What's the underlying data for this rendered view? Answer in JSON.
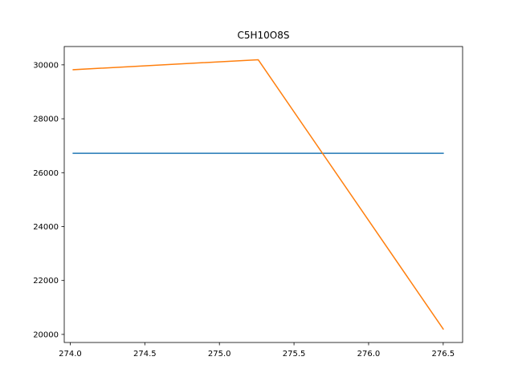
{
  "chart_data": {
    "type": "line",
    "title": "C5H10O8S",
    "xlabel": "",
    "ylabel": "",
    "xlim": [
      273.96,
      276.63
    ],
    "ylim": [
      19700,
      30680
    ],
    "grid": false,
    "x_ticks": [
      "274.0",
      "274.5",
      "275.0",
      "275.5",
      "276.0",
      "276.5"
    ],
    "x_tick_values": [
      274.0,
      274.5,
      275.0,
      275.5,
      276.0,
      276.5
    ],
    "y_ticks": [
      "20000",
      "22000",
      "24000",
      "26000",
      "28000",
      "30000"
    ],
    "y_tick_values": [
      20000,
      22000,
      24000,
      26000,
      28000,
      30000
    ],
    "series": [
      {
        "color": "#1f77b4",
        "x": [
          274.02,
          276.5
        ],
        "y": [
          26720,
          26720
        ]
      },
      {
        "color": "#ff7f0e",
        "x": [
          274.02,
          275.26,
          276.5
        ],
        "y": [
          29820,
          30190,
          20200
        ]
      }
    ]
  }
}
